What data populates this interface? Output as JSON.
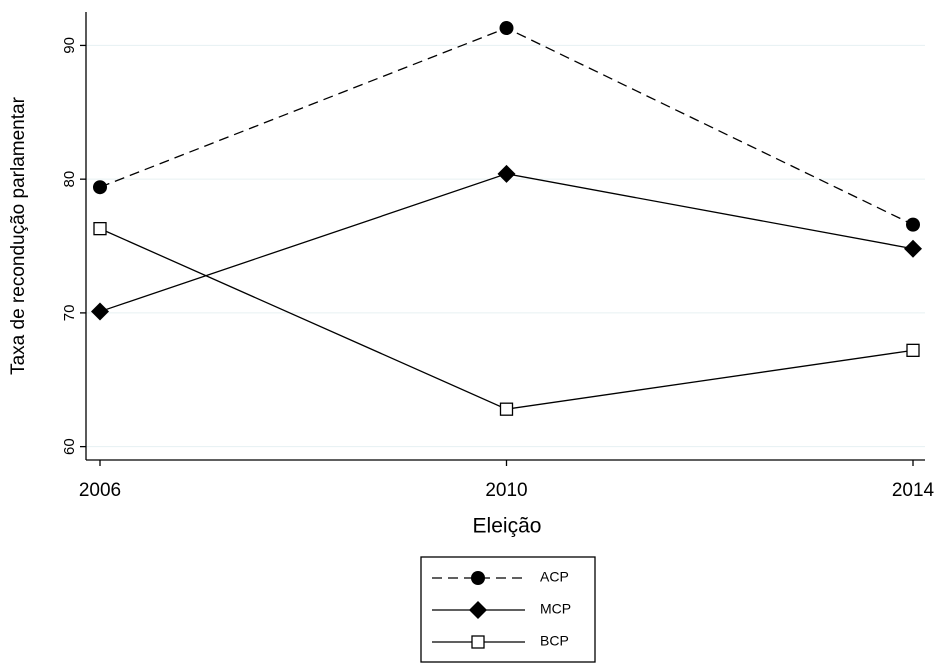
{
  "chart_data": {
    "type": "line",
    "x_label": "Eleição",
    "y_label": "Taxa de recondução parlamentar",
    "x": [
      2006,
      2010,
      2014
    ],
    "xlim": [
      2006,
      2014
    ],
    "xticks": [
      2006,
      2010,
      2014
    ],
    "ylim": [
      59,
      92.5
    ],
    "yticks": [
      60,
      70,
      80,
      90
    ],
    "grid": true,
    "legend": "bottom",
    "series": [
      {
        "name": "ACP",
        "color": "#000000",
        "marker": "circle",
        "dash": true,
        "values": [
          79.4,
          91.3,
          76.6
        ]
      },
      {
        "name": "MCP",
        "color": "#000000",
        "marker": "diamond",
        "dash": false,
        "values": [
          70.1,
          80.4,
          74.8
        ]
      },
      {
        "name": "BCP",
        "color": "#000000",
        "marker": "square-open",
        "dash": false,
        "values": [
          76.3,
          62.8,
          67.2
        ]
      }
    ]
  }
}
